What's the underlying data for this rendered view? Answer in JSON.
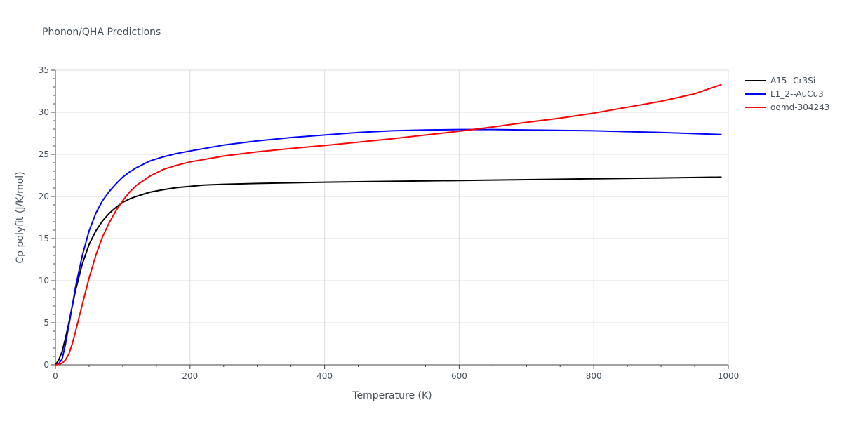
{
  "chart_data": {
    "type": "line",
    "title": "Phonon/QHA Predictions",
    "xlabel": "Temperature (K)",
    "ylabel": "Cp polyfit (J/K/mol)",
    "xlim": [
      0,
      1000
    ],
    "ylim": [
      0,
      35
    ],
    "x_ticks": [
      0,
      200,
      400,
      600,
      800,
      1000
    ],
    "y_ticks": [
      0,
      5,
      10,
      15,
      20,
      25,
      30,
      35
    ],
    "x_tick_labels": [
      "0",
      "200",
      "400",
      "600",
      "800",
      "1000"
    ],
    "y_tick_labels": [
      "0",
      "5",
      "10",
      "15",
      "20",
      "25",
      "30",
      "35"
    ],
    "grid": true,
    "legend_position": "top-right",
    "series": [
      {
        "name": "A15--Cr3Si",
        "color": "#000000",
        "x": [
          0,
          5,
          10,
          15,
          20,
          25,
          30,
          40,
          50,
          60,
          70,
          80,
          90,
          100,
          110,
          120,
          140,
          160,
          180,
          200,
          220,
          250,
          300,
          350,
          400,
          500,
          600,
          700,
          800,
          900,
          990
        ],
        "y": [
          0,
          0.6,
          1.6,
          3.2,
          5.0,
          7.0,
          8.9,
          12.0,
          14.3,
          15.9,
          17.1,
          18.0,
          18.7,
          19.3,
          19.7,
          20.0,
          20.5,
          20.8,
          21.05,
          21.2,
          21.35,
          21.45,
          21.55,
          21.63,
          21.7,
          21.8,
          21.9,
          22.0,
          22.1,
          22.2,
          22.3
        ]
      },
      {
        "name": "L1_2--AuCu3",
        "color": "#0000ff",
        "x": [
          0,
          5,
          10,
          15,
          20,
          25,
          30,
          40,
          50,
          60,
          70,
          80,
          90,
          100,
          110,
          120,
          140,
          160,
          180,
          200,
          250,
          300,
          350,
          400,
          450,
          500,
          550,
          600,
          650,
          700,
          800,
          900,
          990
        ],
        "y": [
          0,
          0.15,
          0.7,
          2.5,
          4.7,
          7.0,
          9.3,
          13.0,
          15.9,
          18.0,
          19.5,
          20.6,
          21.5,
          22.3,
          22.9,
          23.4,
          24.2,
          24.7,
          25.1,
          25.4,
          26.1,
          26.6,
          27.0,
          27.3,
          27.6,
          27.8,
          27.9,
          27.95,
          27.95,
          27.9,
          27.8,
          27.6,
          27.35
        ]
      },
      {
        "name": "oqmd-304243",
        "color": "#ff0000",
        "x": [
          0,
          5,
          10,
          15,
          20,
          25,
          30,
          40,
          50,
          60,
          70,
          80,
          90,
          100,
          110,
          120,
          140,
          160,
          180,
          200,
          250,
          300,
          350,
          400,
          450,
          500,
          550,
          600,
          650,
          700,
          750,
          800,
          850,
          900,
          950,
          990
        ],
        "y": [
          0,
          0.05,
          0.2,
          0.6,
          1.3,
          2.5,
          4.0,
          7.2,
          10.3,
          13.0,
          15.2,
          16.9,
          18.3,
          19.5,
          20.5,
          21.3,
          22.4,
          23.2,
          23.7,
          24.1,
          24.8,
          25.3,
          25.7,
          26.05,
          26.45,
          26.85,
          27.3,
          27.75,
          28.25,
          28.8,
          29.3,
          29.9,
          30.6,
          31.3,
          32.2,
          33.3
        ]
      }
    ]
  }
}
